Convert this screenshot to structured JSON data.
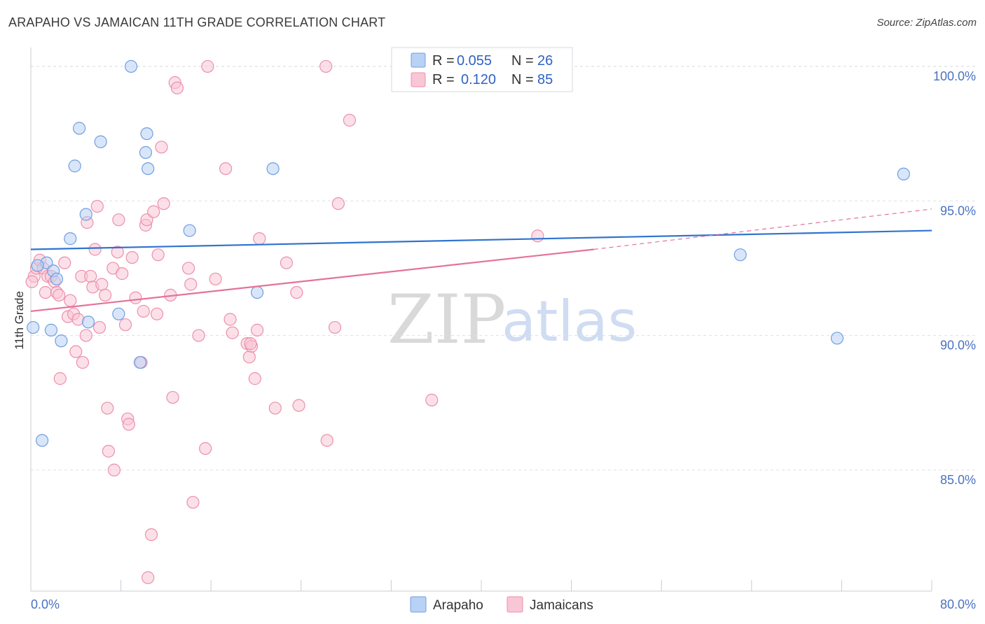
{
  "header": {
    "title": "ARAPAHO VS JAMAICAN 11TH GRADE CORRELATION CHART",
    "source": "Source: ZipAtlas.com"
  },
  "legend": {
    "r_label": "R =",
    "n_label": "N =",
    "rows": [
      {
        "r": "0.055",
        "n": "26"
      },
      {
        "r": "0.120",
        "n": "85"
      }
    ]
  },
  "watermark": {
    "zip": "ZIP",
    "atlas": "atlas"
  },
  "colors": {
    "arapaho_fill": "#b9d1f4",
    "arapaho_stroke": "#6f9fe0",
    "arapaho_line": "#2f73cf",
    "jamaican_fill": "#f9c6d5",
    "jamaican_stroke": "#ec8fae",
    "jamaican_line": "#e4729b",
    "tick_color": "#4a72c2",
    "grid": "#dde0e6"
  },
  "chart_data": {
    "type": "scatter",
    "title": "ARAPAHO VS JAMAICAN 11TH GRADE CORRELATION CHART",
    "xlabel": "",
    "ylabel": "11th Grade",
    "xlim": [
      0,
      80
    ],
    "ylim": [
      80.5,
      100.7
    ],
    "x_tick_labels": [
      "0.0%",
      "80.0%"
    ],
    "y_ticks": [
      85,
      90,
      95,
      100
    ],
    "y_tick_labels": [
      "85.0%",
      "90.0%",
      "95.0%",
      "100.0%"
    ],
    "grid": true,
    "legend_position": "top-center",
    "series": [
      {
        "name": "Arapaho",
        "R": 0.055,
        "N": 26,
        "trend": {
          "x0": 0,
          "y0": 93.2,
          "x1": 80,
          "y1": 93.9
        },
        "points": [
          [
            0.2,
            90.3
          ],
          [
            1.0,
            86.1
          ],
          [
            1.4,
            92.7
          ],
          [
            0.6,
            92.6
          ],
          [
            2.0,
            92.4
          ],
          [
            2.3,
            92.1
          ],
          [
            1.8,
            90.2
          ],
          [
            2.7,
            89.8
          ],
          [
            3.5,
            93.6
          ],
          [
            3.9,
            96.3
          ],
          [
            4.3,
            97.7
          ],
          [
            4.9,
            94.5
          ],
          [
            5.1,
            90.5
          ],
          [
            6.2,
            97.2
          ],
          [
            7.8,
            90.8
          ],
          [
            8.9,
            100.0
          ],
          [
            9.7,
            89.0
          ],
          [
            10.2,
            96.8
          ],
          [
            10.3,
            97.5
          ],
          [
            10.4,
            96.2
          ],
          [
            14.1,
            93.9
          ],
          [
            20.1,
            91.6
          ],
          [
            21.5,
            96.2
          ],
          [
            63.0,
            93.0
          ],
          [
            71.6,
            89.9
          ],
          [
            77.5,
            96.0
          ]
        ]
      },
      {
        "name": "Jamaicans",
        "R": 0.12,
        "N": 85,
        "trend": {
          "x0": 0,
          "y0": 90.9,
          "x1": 50,
          "y1": 93.2,
          "dash_x1": 80,
          "dash_y1": 94.7
        },
        "points": [
          [
            0.3,
            92.2
          ],
          [
            0.5,
            92.5
          ],
          [
            0.8,
            92.8
          ],
          [
            1.1,
            92.5
          ],
          [
            1.3,
            91.6
          ],
          [
            1.5,
            92.2
          ],
          [
            1.8,
            92.2
          ],
          [
            2.1,
            92.0
          ],
          [
            2.3,
            91.6
          ],
          [
            2.5,
            91.5
          ],
          [
            2.6,
            88.4
          ],
          [
            3.0,
            92.7
          ],
          [
            3.3,
            90.7
          ],
          [
            3.5,
            91.3
          ],
          [
            3.8,
            90.8
          ],
          [
            4.0,
            89.4
          ],
          [
            4.2,
            90.6
          ],
          [
            4.5,
            92.2
          ],
          [
            4.6,
            89.0
          ],
          [
            4.9,
            90.0
          ],
          [
            5.0,
            94.2
          ],
          [
            5.3,
            92.2
          ],
          [
            5.5,
            91.8
          ],
          [
            5.7,
            93.2
          ],
          [
            5.9,
            94.8
          ],
          [
            6.1,
            90.3
          ],
          [
            6.3,
            91.9
          ],
          [
            6.6,
            91.5
          ],
          [
            6.8,
            87.3
          ],
          [
            6.9,
            85.7
          ],
          [
            7.3,
            92.5
          ],
          [
            7.4,
            85.0
          ],
          [
            7.7,
            93.1
          ],
          [
            7.8,
            94.3
          ],
          [
            8.1,
            92.3
          ],
          [
            8.4,
            90.4
          ],
          [
            8.6,
            86.9
          ],
          [
            8.7,
            86.7
          ],
          [
            9.0,
            92.9
          ],
          [
            9.3,
            91.4
          ],
          [
            9.8,
            89.0
          ],
          [
            10.0,
            90.9
          ],
          [
            10.2,
            94.1
          ],
          [
            10.3,
            94.3
          ],
          [
            10.4,
            81.0
          ],
          [
            10.7,
            82.6
          ],
          [
            10.9,
            94.6
          ],
          [
            11.2,
            90.8
          ],
          [
            11.3,
            93.0
          ],
          [
            11.6,
            97.0
          ],
          [
            11.8,
            94.9
          ],
          [
            12.4,
            91.5
          ],
          [
            12.6,
            87.7
          ],
          [
            12.8,
            99.4
          ],
          [
            13.0,
            99.2
          ],
          [
            14.0,
            92.5
          ],
          [
            14.2,
            91.9
          ],
          [
            14.4,
            83.8
          ],
          [
            14.9,
            90.0
          ],
          [
            15.5,
            85.8
          ],
          [
            15.7,
            100.0
          ],
          [
            16.4,
            92.1
          ],
          [
            17.3,
            96.2
          ],
          [
            17.7,
            90.6
          ],
          [
            17.9,
            90.1
          ],
          [
            19.2,
            89.7
          ],
          [
            19.4,
            89.2
          ],
          [
            19.6,
            89.6
          ],
          [
            19.9,
            88.4
          ],
          [
            20.1,
            90.2
          ],
          [
            20.3,
            93.6
          ],
          [
            21.7,
            87.3
          ],
          [
            22.7,
            92.7
          ],
          [
            23.6,
            91.6
          ],
          [
            23.8,
            87.4
          ],
          [
            26.2,
            100.0
          ],
          [
            26.3,
            86.1
          ],
          [
            27.0,
            90.3
          ],
          [
            27.3,
            94.9
          ],
          [
            28.3,
            98.0
          ],
          [
            35.6,
            87.6
          ],
          [
            42.3,
            100.0
          ],
          [
            45.0,
            93.7
          ],
          [
            19.5,
            89.7
          ],
          [
            0.1,
            92.0
          ]
        ]
      }
    ]
  }
}
